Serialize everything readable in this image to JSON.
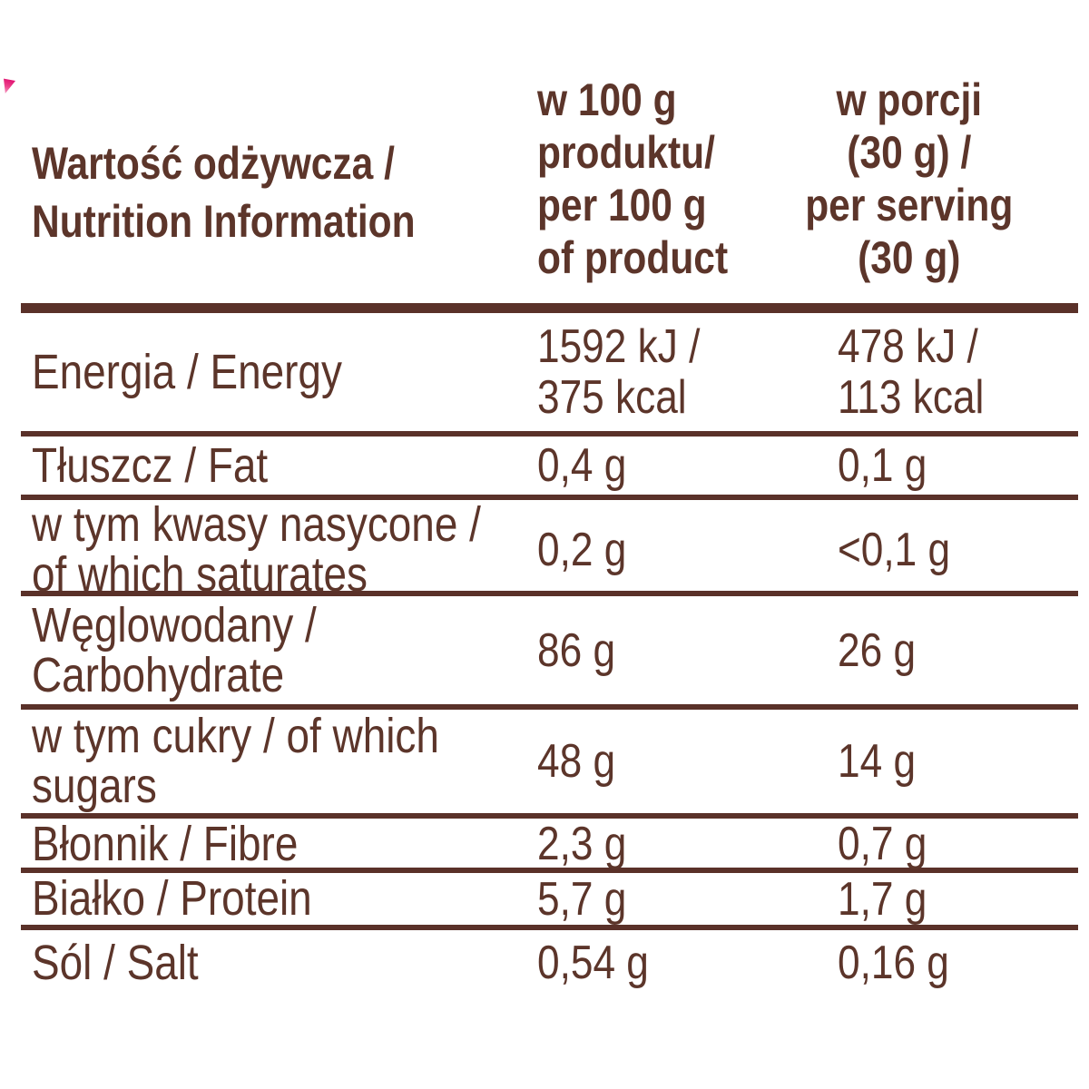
{
  "colors": {
    "background": "#ffffff",
    "text": "#5c352a",
    "rule": "#5a3129",
    "accent_pink": "#e01170"
  },
  "decoration": {
    "corner_mark_icon": "pink-pennant-icon"
  },
  "table": {
    "header": {
      "label": "Wartość odżywcza /\nNutrition Information",
      "per_100g": "w 100 g\nproduktu/\nper 100 g\nof product",
      "per_serving": "w porcji\n(30 g) /\nper serving\n(30 g)"
    },
    "rows": [
      {
        "label": "Energia / Energy",
        "per_100g": "1592 kJ /\n375 kcal",
        "per_serving": "478 kJ /\n113 kcal"
      },
      {
        "label": "Tłuszcz / Fat",
        "per_100g": "0,4 g",
        "per_serving": "0,1 g"
      },
      {
        "label": "w tym kwasy nasycone /\nof which saturates",
        "per_100g": "0,2 g",
        "per_serving": "<0,1 g"
      },
      {
        "label": "Węglowodany /\nCarbohydrate",
        "per_100g": "86 g",
        "per_serving": "26 g"
      },
      {
        "label": "w tym cukry / of which\nsugars",
        "per_100g": "48 g",
        "per_serving": "14 g"
      },
      {
        "label": "Błonnik / Fibre",
        "per_100g": "2,3 g",
        "per_serving": "0,7 g"
      },
      {
        "label": "Białko / Protein",
        "per_100g": "5,7 g",
        "per_serving": "1,7 g"
      },
      {
        "label": "Sól / Salt",
        "per_100g": "0,54 g",
        "per_serving": "0,16 g"
      }
    ]
  }
}
